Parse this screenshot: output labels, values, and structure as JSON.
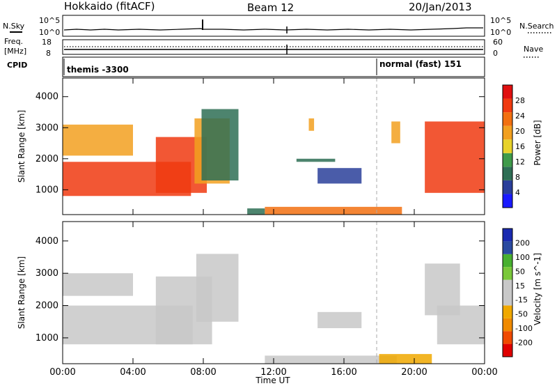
{
  "header": {
    "station": "Hokkaido (fitACF)",
    "beam": "Beam 12",
    "date": "20/Jan/2013"
  },
  "noise_panel": {
    "left_label": "N.Sky",
    "right_label": "N.Search",
    "top_tick": "10^5",
    "bottom_tick": "10^0",
    "right_top_tick": "10^5",
    "right_bottom_tick": "10^0"
  },
  "freq_panel": {
    "left_label_1": "Freq.",
    "left_label_2": "[MHz]",
    "top_tick": "18",
    "bottom_tick": "8",
    "right_label": "Nave",
    "right_top_tick": "60",
    "right_bottom_tick": "0"
  },
  "cpid_panel": {
    "label": "CPID",
    "mode1": "themis -3300",
    "mode2": "normal (fast) 151"
  },
  "colors": {
    "power_scale": [
      "#1a1aff",
      "#2a3f9a",
      "#2e6e55",
      "#3f9a4a",
      "#e8d22a",
      "#f2a020",
      "#f27010",
      "#f03a10",
      "#e01010"
    ],
    "velocity_scale": [
      "#e00000",
      "#f04a00",
      "#f08a00",
      "#f0a800",
      "#c8c8c8",
      "#c8c8c8",
      "#7ac83a",
      "#48b030",
      "#2a4aa0",
      "#1a2ab0"
    ],
    "ground_scatter": "#c8c8c8"
  },
  "chart_data": [
    {
      "type": "heatmap",
      "name": "power",
      "ylabel": "Slant Range [km]",
      "yticks": [
        "1000",
        "2000",
        "3000",
        "4000"
      ],
      "ylim": [
        200,
        4600
      ],
      "colorbar": {
        "label": "Power [dB]",
        "ticks": [
          "4",
          "8",
          "12",
          "16",
          "20",
          "24",
          "28"
        ],
        "range": [
          0,
          32
        ]
      },
      "regions": [
        {
          "t": [
            0.0,
            7.3
          ],
          "r": [
            800,
            1900
          ],
          "value": 28
        },
        {
          "t": [
            5.3,
            8.2
          ],
          "r": [
            900,
            2700
          ],
          "value": 26
        },
        {
          "t": [
            7.5,
            9.5
          ],
          "r": [
            1200,
            3300
          ],
          "value": 20
        },
        {
          "t": [
            7.9,
            10.0
          ],
          "r": [
            1300,
            3600
          ],
          "value": 10
        },
        {
          "t": [
            0.0,
            4.0
          ],
          "r": [
            2100,
            3100
          ],
          "value": 18
        },
        {
          "t": [
            10.5,
            11.5
          ],
          "r": [
            200,
            400
          ],
          "value": 10
        },
        {
          "t": [
            11.5,
            19.3
          ],
          "r": [
            200,
            450
          ],
          "value": 24
        },
        {
          "t": [
            13.3,
            15.5
          ],
          "r": [
            1900,
            2000
          ],
          "value": 8
        },
        {
          "t": [
            14.5,
            17.0
          ],
          "r": [
            1200,
            1700
          ],
          "value": 6
        },
        {
          "t": [
            14.0,
            14.3
          ],
          "r": [
            2900,
            3300
          ],
          "value": 20
        },
        {
          "t": [
            18.7,
            19.2
          ],
          "r": [
            2500,
            3200
          ],
          "value": 18
        },
        {
          "t": [
            20.6,
            24.0
          ],
          "r": [
            900,
            3200
          ],
          "value": 27
        }
      ]
    },
    {
      "type": "heatmap",
      "name": "velocity",
      "xlabel": "Time UT",
      "ylabel": "Slant Range [km]",
      "xticks": [
        "00:00",
        "04:00",
        "08:00",
        "12:00",
        "16:00",
        "20:00",
        "00:00"
      ],
      "xlim": [
        0,
        24
      ],
      "yticks": [
        "1000",
        "2000",
        "3000",
        "4000"
      ],
      "ylim": [
        200,
        4600
      ],
      "colorbar": {
        "label": "Velocity [m s^-1]",
        "ticks": [
          "-200",
          "-100",
          "-50",
          "-15",
          "15",
          "50",
          "100",
          "200"
        ],
        "range": [
          -250,
          250
        ]
      },
      "regions": [
        {
          "t": [
            0.0,
            7.4
          ],
          "r": [
            800,
            2000
          ],
          "value": 0
        },
        {
          "t": [
            5.3,
            8.5
          ],
          "r": [
            800,
            2900
          ],
          "value": 0
        },
        {
          "t": [
            7.6,
            10.0
          ],
          "r": [
            1500,
            3600
          ],
          "value": 0
        },
        {
          "t": [
            0.0,
            4.0
          ],
          "r": [
            2300,
            3000
          ],
          "value": 0
        },
        {
          "t": [
            11.5,
            19.0
          ],
          "r": [
            200,
            450
          ],
          "value": 30
        },
        {
          "t": [
            18.0,
            21.0
          ],
          "r": [
            200,
            500
          ],
          "value": -70
        },
        {
          "t": [
            14.5,
            17.0
          ],
          "r": [
            1300,
            1800
          ],
          "value": 40
        },
        {
          "t": [
            20.6,
            22.6
          ],
          "r": [
            1700,
            3300
          ],
          "value": 45
        },
        {
          "t": [
            21.3,
            24.0
          ],
          "r": [
            800,
            2000
          ],
          "value": 0
        }
      ]
    }
  ]
}
